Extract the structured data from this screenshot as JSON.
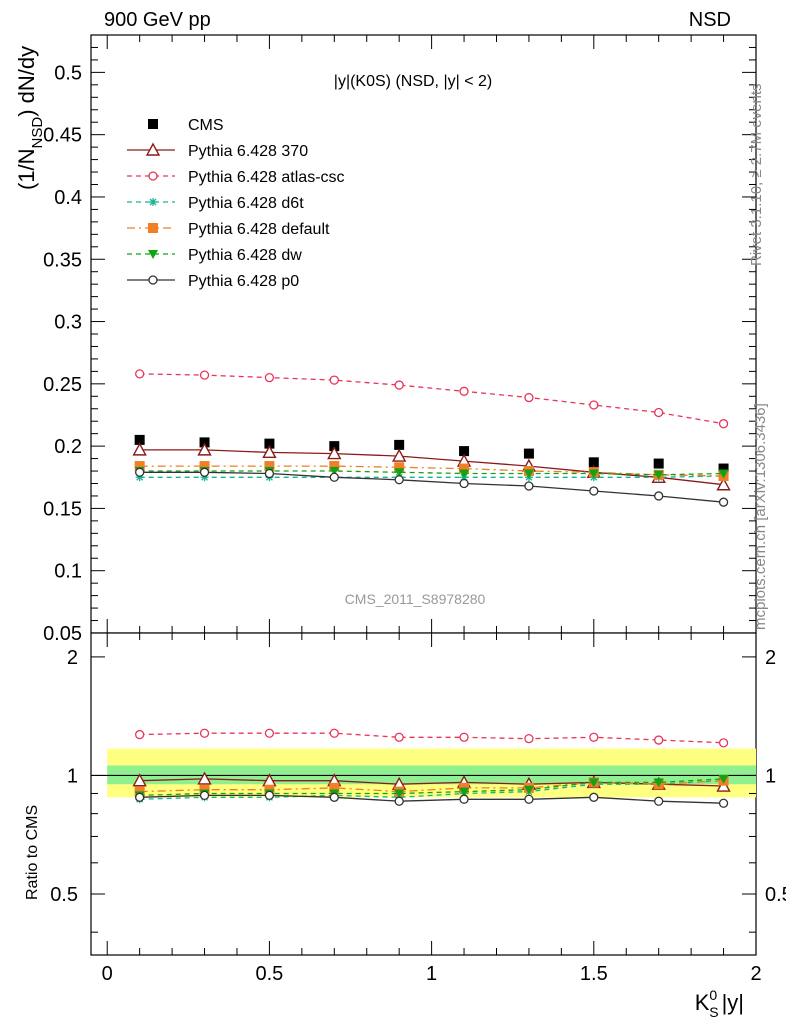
{
  "header": {
    "energy_label": "900 GeV pp",
    "process_label": "NSD",
    "rivet_label": "Rivet 3.1.10, ≥ 2.7M events",
    "mcplots_label": "mcplots.cern.ch [arXiv:1306.3436]",
    "analysis_id": "CMS_2011_S8978280"
  },
  "chart_data": [
    {
      "type": "scatter",
      "title": "|y|(K0S) (NSD, |y| < 2)",
      "xlabel": "",
      "ylabel": "(1/N_NSD) dN/dy",
      "ylabel_main": "(1/N",
      "ylabel_sub": "NSD",
      "ylabel_tail": ") dN/dy",
      "xlim": [
        -0.05,
        2.0
      ],
      "ylim": [
        0.05,
        0.53
      ],
      "yticks": [
        "0.05",
        "0.1",
        "0.15",
        "0.2",
        "0.25",
        "0.3",
        "0.35",
        "0.4",
        "0.45",
        "0.5"
      ],
      "x": [
        0.1,
        0.3,
        0.5,
        0.7,
        0.9,
        1.1,
        1.3,
        1.5,
        1.7,
        1.9
      ],
      "legend_position": "top-left",
      "series": [
        {
          "name": "CMS",
          "color": "#000000",
          "marker": "square-filled",
          "line": "none",
          "values": [
            0.205,
            0.203,
            0.202,
            0.2,
            0.201,
            0.196,
            0.194,
            0.187,
            0.186,
            0.182
          ]
        },
        {
          "name": "Pythia 6.428 370",
          "color": "#8b1a1a",
          "marker": "triangle-open",
          "line": "solid",
          "values": [
            0.197,
            0.197,
            0.195,
            0.194,
            0.192,
            0.188,
            0.184,
            0.179,
            0.175,
            0.169
          ]
        },
        {
          "name": "Pythia 6.428 atlas-csc",
          "color": "#e8355a",
          "marker": "circle-open",
          "line": "dashed",
          "values": [
            0.258,
            0.257,
            0.255,
            0.253,
            0.249,
            0.244,
            0.239,
            0.233,
            0.227,
            0.218
          ]
        },
        {
          "name": "Pythia 6.428 d6t",
          "color": "#19b394",
          "marker": "star",
          "line": "dashed",
          "values": [
            0.175,
            0.175,
            0.175,
            0.175,
            0.175,
            0.175,
            0.175,
            0.175,
            0.175,
            0.176
          ]
        },
        {
          "name": "Pythia 6.428 default",
          "color": "#f07f28",
          "marker": "square-filled",
          "line": "dashdot",
          "values": [
            0.184,
            0.184,
            0.184,
            0.184,
            0.183,
            0.182,
            0.18,
            0.179,
            0.177,
            0.176
          ]
        },
        {
          "name": "Pythia 6.428 dw",
          "color": "#12a312",
          "marker": "triangle-down-filled",
          "line": "dashed",
          "values": [
            0.18,
            0.18,
            0.18,
            0.18,
            0.179,
            0.178,
            0.178,
            0.178,
            0.177,
            0.178
          ]
        },
        {
          "name": "Pythia 6.428 p0",
          "color": "#333333",
          "marker": "circle-open",
          "line": "solid",
          "values": [
            0.179,
            0.179,
            0.178,
            0.175,
            0.173,
            0.17,
            0.168,
            0.164,
            0.16,
            0.155
          ]
        }
      ]
    },
    {
      "type": "line",
      "xlabel": "K_S^0 |y|",
      "xlabel_main": "K",
      "xlabel_sup": "0",
      "xlabel_sub": "S",
      "xlabel_tail": "|y|",
      "ylabel": "Ratio to CMS",
      "log_y": true,
      "xlim": [
        -0.05,
        2.0
      ],
      "ylim": [
        0.35,
        2.3
      ],
      "xticks": [
        "0",
        "0.5",
        "1",
        "1.5",
        "2"
      ],
      "yticks": [
        "0.5",
        "1",
        "2"
      ],
      "bands": [
        {
          "label": "outer",
          "color": "#ffff80",
          "range": [
            0.88,
            1.17
          ]
        },
        {
          "label": "inner",
          "color": "#90f090",
          "range": [
            0.95,
            1.06
          ]
        }
      ],
      "x": [
        0.1,
        0.3,
        0.5,
        0.7,
        0.9,
        1.1,
        1.3,
        1.5,
        1.7,
        1.9
      ],
      "series": [
        {
          "name": "Pythia 6.428 370",
          "color": "#8b1a1a",
          "marker": "triangle-open",
          "line": "solid",
          "values": [
            0.97,
            0.98,
            0.97,
            0.97,
            0.95,
            0.96,
            0.95,
            0.96,
            0.95,
            0.94
          ]
        },
        {
          "name": "Pythia 6.428 atlas-csc",
          "color": "#e8355a",
          "marker": "circle-open",
          "line": "dashed",
          "values": [
            1.27,
            1.28,
            1.28,
            1.28,
            1.25,
            1.25,
            1.24,
            1.25,
            1.23,
            1.21
          ]
        },
        {
          "name": "Pythia 6.428 d6t",
          "color": "#19b394",
          "marker": "star",
          "line": "dashed",
          "values": [
            0.87,
            0.88,
            0.88,
            0.89,
            0.88,
            0.9,
            0.91,
            0.95,
            0.95,
            0.97
          ]
        },
        {
          "name": "Pythia 6.428 default",
          "color": "#f07f28",
          "marker": "square-filled",
          "line": "dashdot",
          "values": [
            0.91,
            0.92,
            0.92,
            0.93,
            0.91,
            0.93,
            0.93,
            0.96,
            0.95,
            0.97
          ]
        },
        {
          "name": "Pythia 6.428 dw",
          "color": "#12a312",
          "marker": "triangle-down-filled",
          "line": "dashed",
          "values": [
            0.89,
            0.9,
            0.9,
            0.9,
            0.9,
            0.91,
            0.92,
            0.96,
            0.96,
            0.98
          ]
        },
        {
          "name": "Pythia 6.428 p0",
          "color": "#333333",
          "marker": "circle-open",
          "line": "solid",
          "values": [
            0.88,
            0.89,
            0.89,
            0.88,
            0.86,
            0.87,
            0.87,
            0.88,
            0.86,
            0.85
          ]
        }
      ]
    }
  ]
}
